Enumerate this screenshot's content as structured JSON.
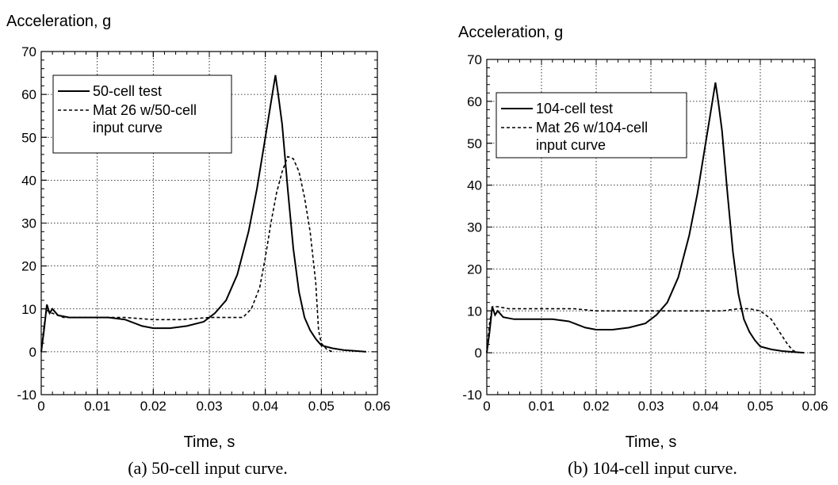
{
  "chart_data": [
    {
      "type": "line",
      "ylabel": "Acceleration, g",
      "xlabel": "Time, s",
      "xlim": [
        0,
        0.06
      ],
      "ylim": [
        -10,
        70
      ],
      "xticks": [
        "0",
        "0.01",
        "0.02",
        "0.03",
        "0.04",
        "0.05",
        "0.06"
      ],
      "yticks": [
        "-10",
        "0",
        "10",
        "20",
        "30",
        "40",
        "50",
        "60",
        "70"
      ],
      "grid": true,
      "legend_position": "top-left",
      "caption": "(a) 50-cell input curve.",
      "series": [
        {
          "name": "50-cell test",
          "style": "solid",
          "x": [
            0,
            0.0005,
            0.001,
            0.0015,
            0.002,
            0.003,
            0.005,
            0.008,
            0.012,
            0.015,
            0.018,
            0.02,
            0.023,
            0.026,
            0.029,
            0.031,
            0.033,
            0.035,
            0.037,
            0.0385,
            0.04,
            0.041,
            0.0418,
            0.0423,
            0.043,
            0.044,
            0.045,
            0.046,
            0.047,
            0.048,
            0.049,
            0.05,
            0.052,
            0.054,
            0.056,
            0.058
          ],
          "y": [
            0,
            5,
            11,
            9,
            10,
            8.5,
            8,
            8,
            8,
            7.5,
            6,
            5.5,
            5.5,
            6,
            7,
            9,
            12,
            18,
            28,
            38,
            50,
            58,
            64.5,
            60,
            53,
            38,
            24,
            14,
            8,
            5,
            3,
            1.5,
            0.8,
            0.4,
            0.2,
            0
          ]
        },
        {
          "name": "Mat 26 w/50-cell input curve",
          "style": "dashed",
          "x": [
            0,
            0.0005,
            0.001,
            0.0015,
            0.002,
            0.004,
            0.007,
            0.01,
            0.015,
            0.02,
            0.025,
            0.03,
            0.034,
            0.036,
            0.0375,
            0.039,
            0.04,
            0.041,
            0.042,
            0.043,
            0.044,
            0.045,
            0.046,
            0.047,
            0.048,
            0.049,
            0.0495,
            0.05,
            0.051,
            0.052
          ],
          "y": [
            0,
            6,
            10,
            9,
            9,
            8,
            8,
            8,
            8,
            7.5,
            7.5,
            8,
            8,
            8,
            10,
            15,
            22,
            30,
            37,
            42,
            45.5,
            45,
            42,
            36,
            28,
            16,
            5,
            2,
            0.5,
            0
          ]
        }
      ]
    },
    {
      "type": "line",
      "ylabel": "Acceleration, g",
      "xlabel": "Time, s",
      "xlim": [
        0,
        0.06
      ],
      "ylim": [
        -10,
        70
      ],
      "xticks": [
        "0",
        "0.01",
        "0.02",
        "0.03",
        "0.04",
        "0.05",
        "0.06"
      ],
      "yticks": [
        "-10",
        "0",
        "10",
        "20",
        "30",
        "40",
        "50",
        "60",
        "70"
      ],
      "grid": true,
      "legend_position": "top-left",
      "caption": "(b) 104-cell input curve.",
      "series": [
        {
          "name": "104-cell test",
          "style": "solid",
          "x": [
            0,
            0.0005,
            0.001,
            0.0015,
            0.002,
            0.003,
            0.005,
            0.008,
            0.012,
            0.015,
            0.018,
            0.02,
            0.023,
            0.026,
            0.029,
            0.031,
            0.033,
            0.035,
            0.037,
            0.0385,
            0.04,
            0.041,
            0.0418,
            0.0423,
            0.043,
            0.044,
            0.045,
            0.046,
            0.047,
            0.048,
            0.049,
            0.05,
            0.052,
            0.054,
            0.056,
            0.058
          ],
          "y": [
            0,
            5,
            11,
            9,
            10,
            8.5,
            8,
            8,
            8,
            7.5,
            6,
            5.5,
            5.5,
            6,
            7,
            9,
            12,
            18,
            28,
            38,
            50,
            58,
            64.5,
            60,
            53,
            38,
            24,
            14,
            8,
            5,
            3,
            1.5,
            0.8,
            0.4,
            0.2,
            0
          ]
        },
        {
          "name": "Mat 26 w/104-cell input curve",
          "style": "dashed",
          "x": [
            0,
            0.0005,
            0.001,
            0.0015,
            0.002,
            0.004,
            0.008,
            0.012,
            0.016,
            0.02,
            0.025,
            0.03,
            0.035,
            0.04,
            0.043,
            0.046,
            0.048,
            0.05,
            0.052,
            0.053,
            0.054,
            0.055,
            0.056,
            0.057
          ],
          "y": [
            0,
            7,
            11,
            11,
            11,
            10.5,
            10.5,
            10.5,
            10.5,
            10,
            10,
            10,
            10,
            10,
            10,
            10.5,
            10.5,
            10,
            8,
            6,
            4,
            2,
            0.5,
            0
          ]
        }
      ]
    }
  ],
  "legend_lines": [
    [
      "50-cell test",
      "Mat 26 w/50-cell",
      "input curve"
    ],
    [
      "104-cell test",
      "Mat 26 w/104-cell",
      "input curve"
    ]
  ]
}
